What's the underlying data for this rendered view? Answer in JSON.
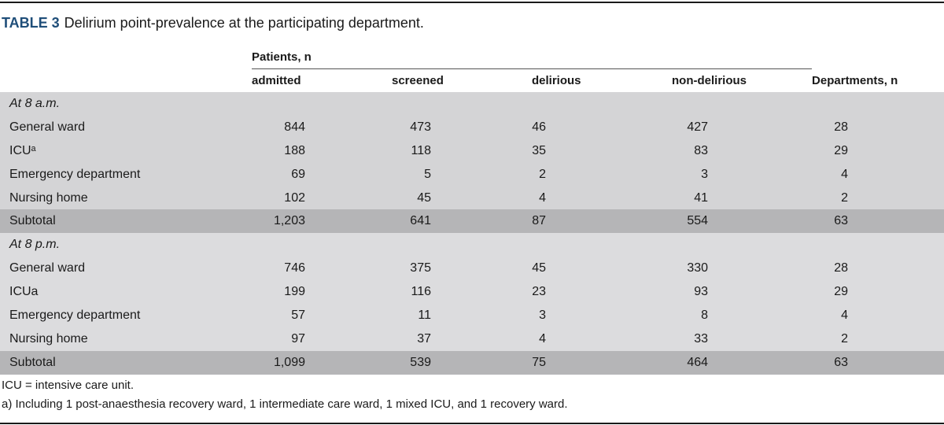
{
  "caption": {
    "label": "TABLE 3",
    "text": "Delirium point-prevalence at the participating department."
  },
  "headers": {
    "group": "Patients, n",
    "admitted": "admitted",
    "screened": "screened",
    "delirious": "delirious",
    "non_delirious": "non-delirious",
    "departments": "Departments, n"
  },
  "sections": [
    {
      "title": "At 8 a.m.",
      "rows": [
        {
          "label": "General ward",
          "admitted": "844",
          "screened": "473",
          "delirious": "46",
          "non_delirious": "427",
          "departments": "28"
        },
        {
          "label": "ICUᵃ",
          "admitted": "188",
          "screened": "118",
          "delirious": "35",
          "non_delirious": "83",
          "departments": "29"
        },
        {
          "label": "Emergency department",
          "admitted": "69",
          "screened": "5",
          "delirious": "2",
          "non_delirious": "3",
          "departments": "4"
        },
        {
          "label": "Nursing home",
          "admitted": "102",
          "screened": "45",
          "delirious": "4",
          "non_delirious": "41",
          "departments": "2"
        }
      ],
      "subtotal": {
        "label": "Subtotal",
        "admitted": "1,203",
        "screened": "641",
        "delirious": "87",
        "non_delirious": "554",
        "departments": "63"
      }
    },
    {
      "title": "At 8 p.m.",
      "rows": [
        {
          "label": "General ward",
          "admitted": "746",
          "screened": "375",
          "delirious": "45",
          "non_delirious": "330",
          "departments": "28"
        },
        {
          "label": "ICUa",
          "admitted": "199",
          "screened": "116",
          "delirious": "23",
          "non_delirious": "93",
          "departments": "29"
        },
        {
          "label": "Emergency department",
          "admitted": "57",
          "screened": "11",
          "delirious": "3",
          "non_delirious": "8",
          "departments": "4"
        },
        {
          "label": "Nursing home",
          "admitted": "97",
          "screened": "37",
          "delirious": "4",
          "non_delirious": "33",
          "departments": "2"
        }
      ],
      "subtotal": {
        "label": "Subtotal",
        "admitted": "1,099",
        "screened": "539",
        "delirious": "75",
        "non_delirious": "464",
        "departments": "63"
      }
    }
  ],
  "footnotes": {
    "abbrev": "ICU = intensive care unit.",
    "a": "a) Including 1 post-anaesthesia recovery ward, 1 intermediate care ward, 1 mixed ICU, and 1 recovery ward."
  },
  "colors": {
    "caption_label": "#1f4e79",
    "row_bg": "#d4d4d6",
    "subtotal_bg": "#b5b5b7"
  }
}
